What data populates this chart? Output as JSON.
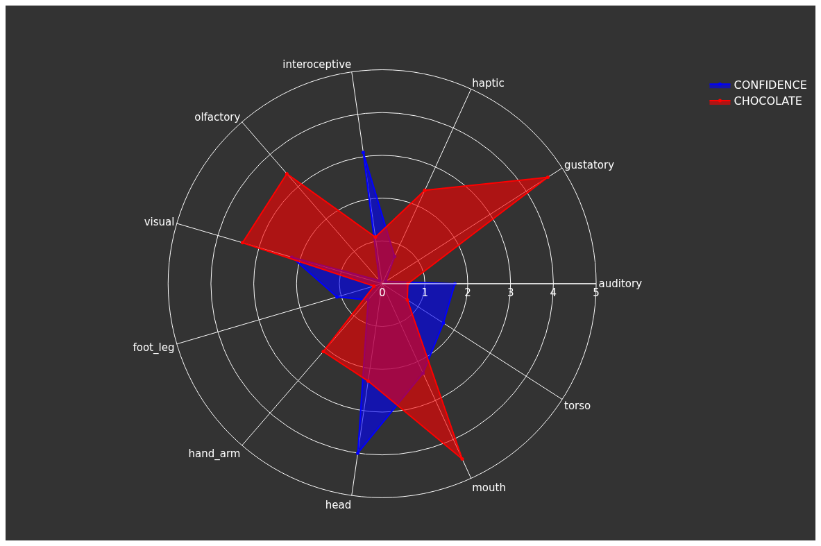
{
  "chart_data": {
    "type": "radar",
    "categories": [
      "haptic",
      "gustatory",
      "auditory",
      "torso",
      "mouth",
      "head",
      "hand_arm",
      "foot_leg",
      "visual",
      "olfactory",
      "interoceptive"
    ],
    "series": [
      {
        "name": "CONFIDENCE",
        "color": "#0000ff",
        "values": [
          0.7,
          0.1,
          1.7,
          1.7,
          2.3,
          4.0,
          0.5,
          1.1,
          2.2,
          0.1,
          3.1
        ]
      },
      {
        "name": "CHOCOLATE",
        "color": "#ff0000",
        "values": [
          2.4,
          4.6,
          0.6,
          0.7,
          4.5,
          2.3,
          2.1,
          0.2,
          3.4,
          3.4,
          1.1
        ]
      }
    ],
    "ylim": [
      0,
      5
    ],
    "yticks": [
      0,
      1,
      2,
      3,
      4,
      5
    ],
    "grid": true,
    "legend": "top right",
    "marker": "circle",
    "line_style": "solid"
  }
}
